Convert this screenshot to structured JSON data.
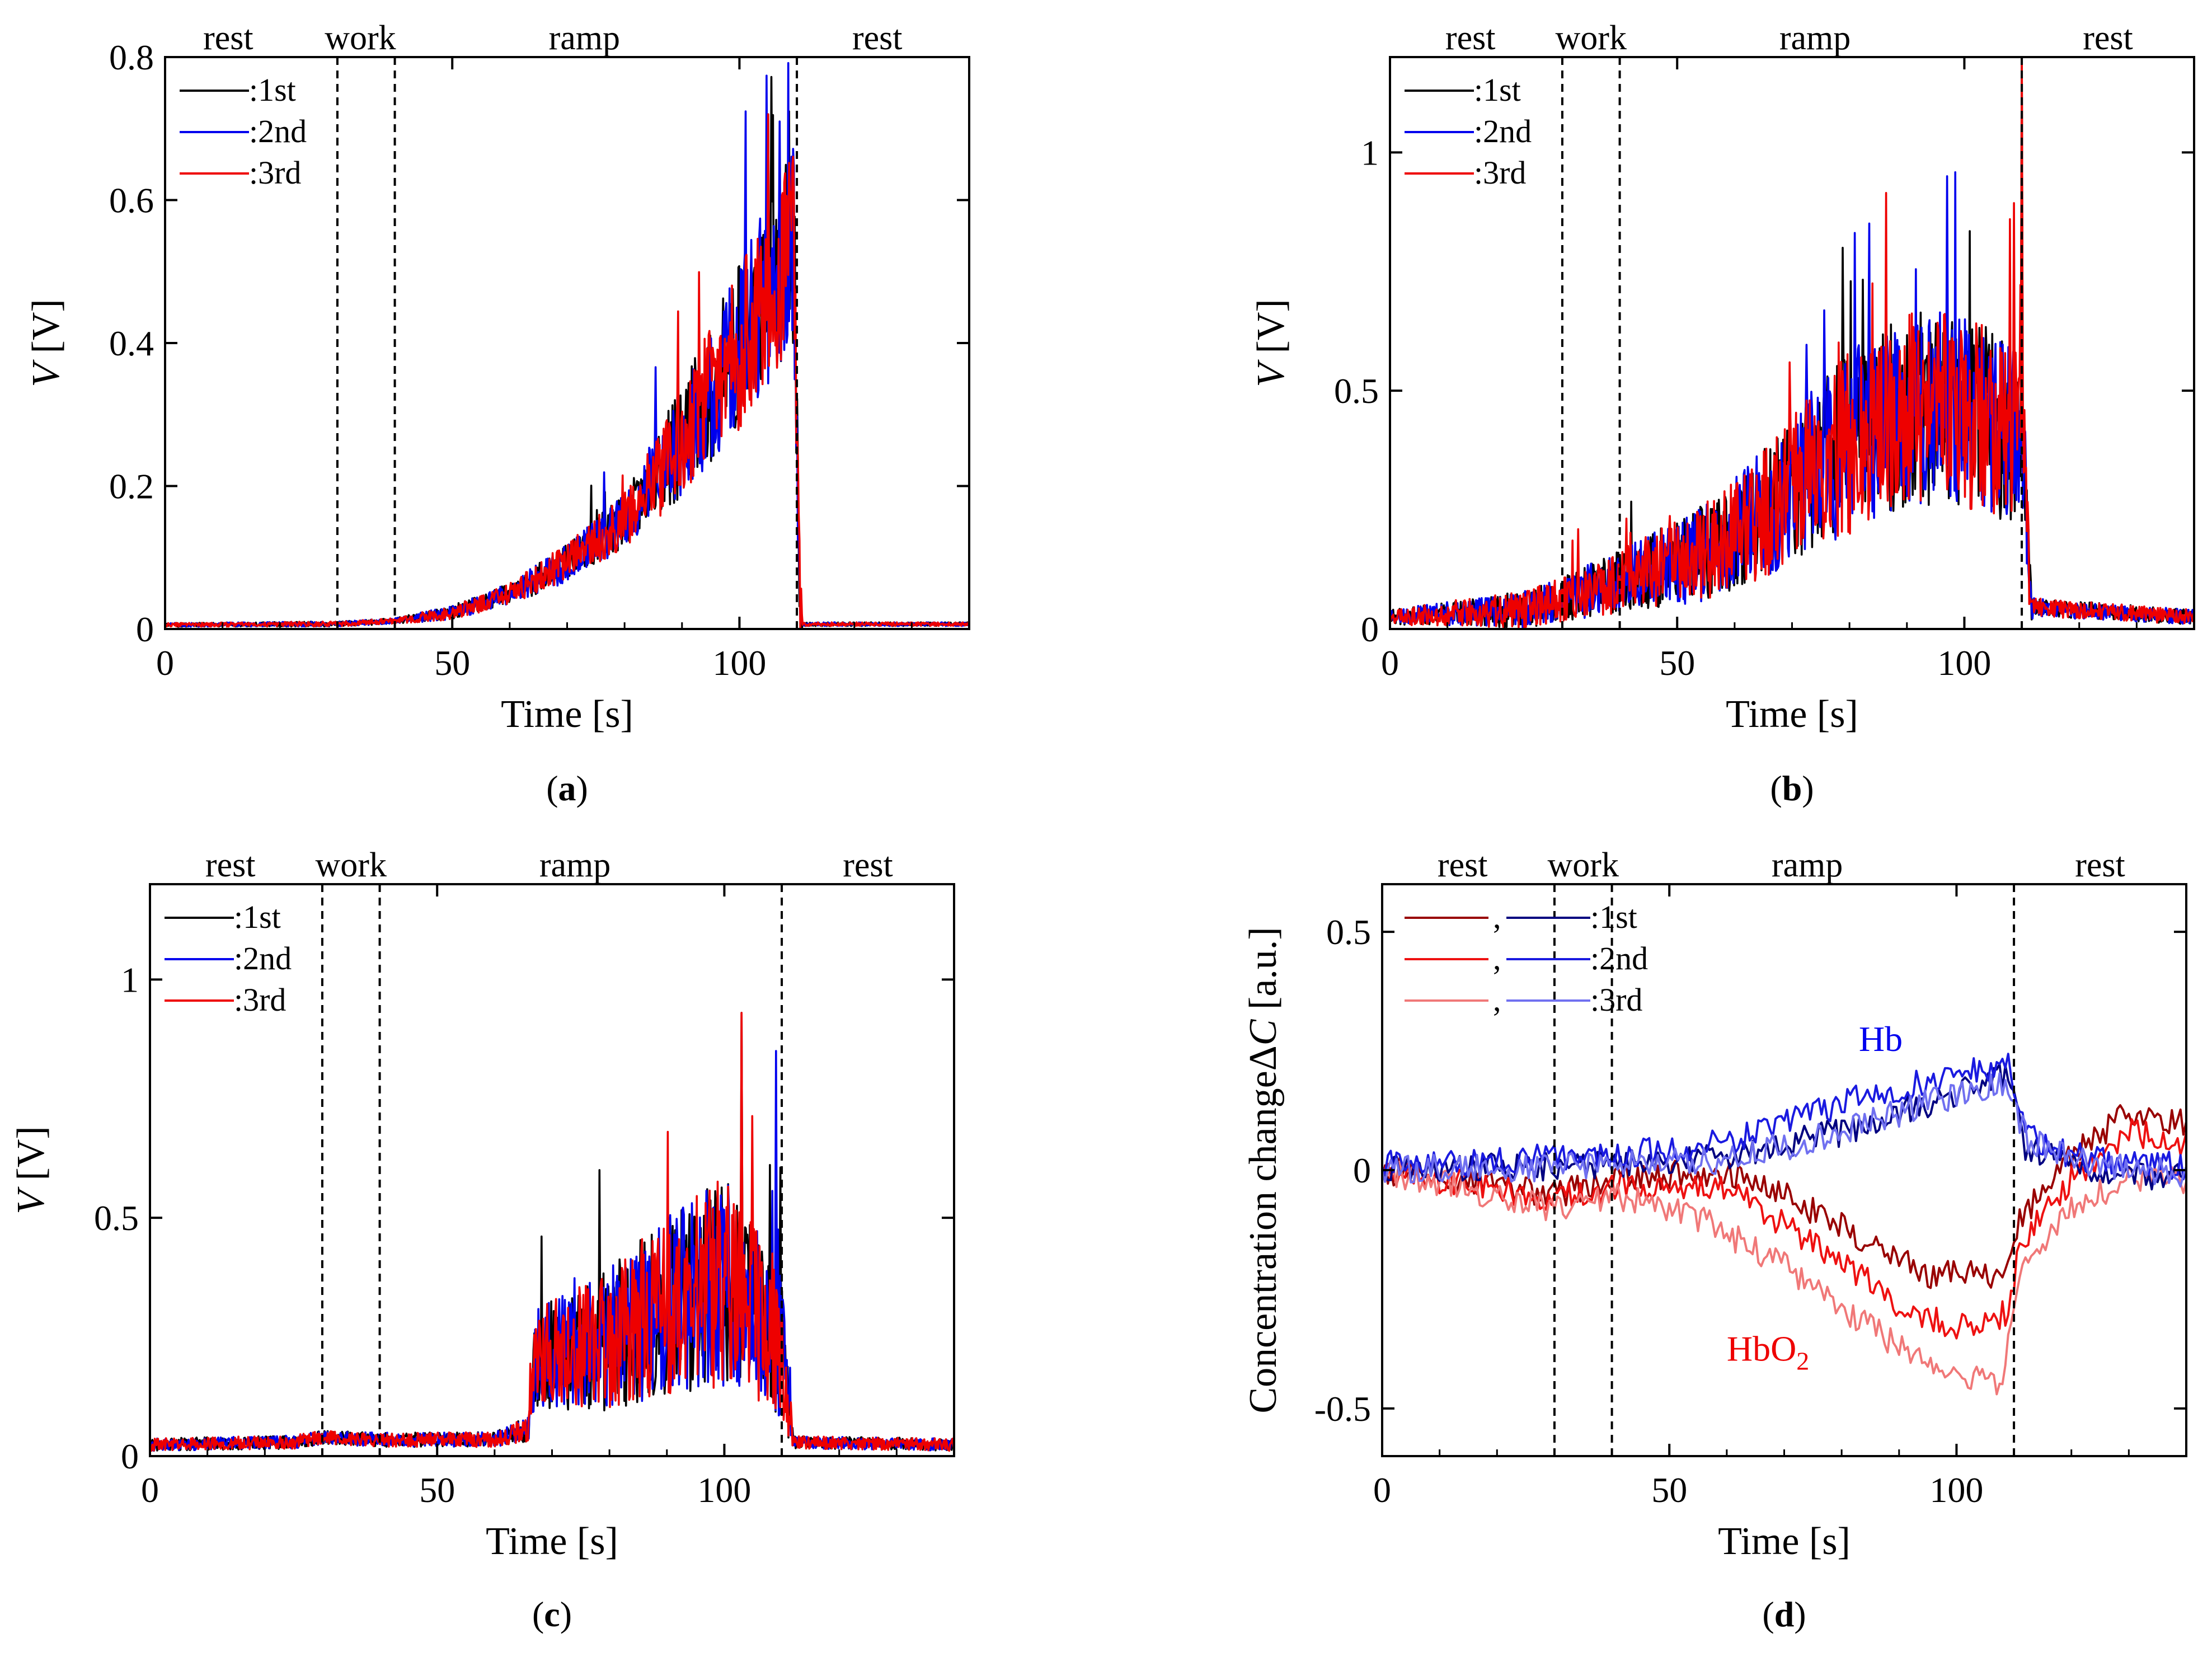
{
  "figure": "Four-panel time-series figure",
  "chart_data": [
    {
      "id": "a",
      "type": "line",
      "panel_label": "a",
      "xlabel": "Time [s]",
      "ylabel_italic": "V",
      "ylabel_rest": " [V]",
      "xlim": [
        0,
        140
      ],
      "ylim": [
        0,
        0.8
      ],
      "xticks": [
        0,
        50,
        100
      ],
      "yticks": [
        0,
        0.2,
        0.4,
        0.6,
        0.8
      ],
      "ytick_labels": [
        "0",
        "0.2",
        "0.4",
        "0.6",
        "0.8"
      ],
      "phase_boundaries": [
        30,
        40,
        110
      ],
      "phases": [
        {
          "label": "rest",
          "x": 11
        },
        {
          "label": "work",
          "x": 34
        },
        {
          "label": "ramp",
          "x": 73
        },
        {
          "label": "rest",
          "x": 124
        }
      ],
      "series": [
        {
          "name": ":1st",
          "color": "#000000"
        },
        {
          "name": ":2nd",
          "color": "#0000ee"
        },
        {
          "name": ":3rd",
          "color": "#ee0000"
        }
      ],
      "trace_profile": [
        [
          0,
          0.005
        ],
        [
          30,
          0.006
        ],
        [
          40,
          0.01
        ],
        [
          50,
          0.02
        ],
        [
          60,
          0.045
        ],
        [
          70,
          0.085
        ],
        [
          80,
          0.14
        ],
        [
          90,
          0.24
        ],
        [
          100,
          0.36
        ],
        [
          107,
          0.46
        ],
        [
          109.5,
          0.5
        ],
        [
          110.5,
          0.006
        ],
        [
          140,
          0.006
        ]
      ],
      "noise_profile": [
        [
          0,
          0.002
        ],
        [
          40,
          0.003
        ],
        [
          60,
          0.012
        ],
        [
          80,
          0.03
        ],
        [
          90,
          0.06
        ],
        [
          100,
          0.09
        ],
        [
          110,
          0.11
        ],
        [
          111,
          0.002
        ],
        [
          140,
          0.002
        ]
      ],
      "peaks": [
        [
          105,
          0.72
        ],
        [
          107,
          0.71
        ]
      ]
    },
    {
      "id": "b",
      "type": "line",
      "panel_label": "b",
      "xlabel": "Time [s]",
      "ylabel_italic": "V",
      "ylabel_rest": " [V]",
      "xlim": [
        0,
        140
      ],
      "ylim": [
        0,
        1.2
      ],
      "xticks": [
        0,
        50,
        100
      ],
      "yticks": [
        0,
        0.5,
        1
      ],
      "ytick_labels": [
        "0",
        "0.5",
        "1"
      ],
      "phase_boundaries": [
        30,
        40,
        110
      ],
      "phases": [
        {
          "label": "rest",
          "x": 14
        },
        {
          "label": "work",
          "x": 35
        },
        {
          "label": "ramp",
          "x": 74
        },
        {
          "label": "rest",
          "x": 125
        }
      ],
      "series": [
        {
          "name": ":1st",
          "color": "#000000"
        },
        {
          "name": ":2nd",
          "color": "#0000ee"
        },
        {
          "name": ":3rd",
          "color": "#ee0000"
        }
      ],
      "trace_profile": [
        [
          0,
          0.02
        ],
        [
          24,
          0.03
        ],
        [
          30,
          0.05
        ],
        [
          40,
          0.08
        ],
        [
          55,
          0.13
        ],
        [
          65,
          0.2
        ],
        [
          75,
          0.3
        ],
        [
          90,
          0.4
        ],
        [
          100,
          0.4
        ],
        [
          108,
          0.35
        ],
        [
          110,
          0.4
        ],
        [
          111.5,
          0.04
        ],
        [
          140,
          0.02
        ]
      ],
      "noise_profile": [
        [
          0,
          0.012
        ],
        [
          24,
          0.03
        ],
        [
          40,
          0.05
        ],
        [
          60,
          0.09
        ],
        [
          80,
          0.15
        ],
        [
          100,
          0.16
        ],
        [
          110,
          0.14
        ],
        [
          112,
          0.015
        ],
        [
          140,
          0.012
        ]
      ],
      "peaks": [
        [
          110,
          1.2
        ],
        [
          97,
          0.95
        ]
      ]
    },
    {
      "id": "c",
      "type": "line",
      "panel_label": "c",
      "xlabel": "Time [s]",
      "ylabel_italic": "V",
      "ylabel_rest": " [V]",
      "xlim": [
        0,
        140
      ],
      "ylim": [
        0,
        1.2
      ],
      "xticks": [
        0,
        50,
        100
      ],
      "yticks": [
        0,
        0.5,
        1
      ],
      "ytick_labels": [
        "0",
        "0.5",
        "1"
      ],
      "phase_boundaries": [
        30,
        40,
        110
      ],
      "phases": [
        {
          "label": "rest",
          "x": 14
        },
        {
          "label": "work",
          "x": 35
        },
        {
          "label": "ramp",
          "x": 74
        },
        {
          "label": "rest",
          "x": 125
        }
      ],
      "series": [
        {
          "name": ":1st",
          "color": "#000000"
        },
        {
          "name": ":2nd",
          "color": "#0000ee"
        },
        {
          "name": ":3rd",
          "color": "#ee0000"
        }
      ],
      "trace_profile": [
        [
          0,
          0.02
        ],
        [
          25,
          0.025
        ],
        [
          30,
          0.035
        ],
        [
          40,
          0.03
        ],
        [
          60,
          0.03
        ],
        [
          66,
          0.05
        ],
        [
          67,
          0.17
        ],
        [
          80,
          0.2
        ],
        [
          90,
          0.26
        ],
        [
          100,
          0.3
        ],
        [
          108,
          0.22
        ],
        [
          110,
          0.18
        ],
        [
          112,
          0.025
        ],
        [
          140,
          0.02
        ]
      ],
      "noise_profile": [
        [
          0,
          0.01
        ],
        [
          60,
          0.012
        ],
        [
          66,
          0.02
        ],
        [
          67,
          0.08
        ],
        [
          85,
          0.13
        ],
        [
          100,
          0.17
        ],
        [
          110,
          0.12
        ],
        [
          112,
          0.01
        ],
        [
          140,
          0.01
        ]
      ],
      "peaks": [
        [
          103,
          0.93
        ],
        [
          109,
          0.85
        ]
      ]
    },
    {
      "id": "d",
      "type": "line",
      "panel_label": "d",
      "xlabel": "Time [s]",
      "ylabel": "Concentration change",
      "ylabel_symbol": "ΔC",
      "ylabel_unit": " [a.u.]",
      "xlim": [
        0,
        140
      ],
      "ylim": [
        -0.6,
        0.6
      ],
      "xticks": [
        0,
        50,
        100
      ],
      "yticks": [
        -0.5,
        0,
        0.5
      ],
      "ytick_labels": [
        "-0.5",
        "0",
        "0.5"
      ],
      "phase_boundaries": [
        30,
        40,
        110
      ],
      "phases": [
        {
          "label": "rest",
          "x": 14
        },
        {
          "label": "work",
          "x": 35
        },
        {
          "label": "ramp",
          "x": 74
        },
        {
          "label": "rest",
          "x": 125
        }
      ],
      "legend_pairs": [
        {
          "hbo2_color": "#990000",
          "hb_color": "#000080",
          "name": ":1st"
        },
        {
          "hbo2_color": "#ee1111",
          "hb_color": "#1a1ae0",
          "name": ":2nd"
        },
        {
          "hbo2_color": "#f07878",
          "hb_color": "#7070f0",
          "name": ":3rd"
        }
      ],
      "legend_separator": ",",
      "annotations": [
        {
          "text": "Hb",
          "color": "#0000ee",
          "x": 83,
          "y": 0.25
        },
        {
          "text": "HbO",
          "subscript": "2",
          "color": "#ee0000",
          "x": 60,
          "y": -0.4
        }
      ],
      "hb_series": [
        {
          "name": "Hb 1st",
          "color": "#000080",
          "profile": [
            [
              0,
              0
            ],
            [
              40,
              0.01
            ],
            [
              60,
              0.03
            ],
            [
              80,
              0.08
            ],
            [
              100,
              0.16
            ],
            [
              109,
              0.2
            ],
            [
              112,
              0.05
            ],
            [
              120,
              0.01
            ],
            [
              140,
              -0.02
            ]
          ]
        },
        {
          "name": "Hb 2nd",
          "color": "#1a1ae0",
          "profile": [
            [
              0,
              0.01
            ],
            [
              40,
              0.03
            ],
            [
              60,
              0.06
            ],
            [
              80,
              0.14
            ],
            [
              100,
              0.2
            ],
            [
              109,
              0.23
            ],
            [
              112,
              0.08
            ],
            [
              120,
              0.03
            ],
            [
              140,
              0.01
            ]
          ]
        },
        {
          "name": "Hb 3rd",
          "color": "#7070f0",
          "profile": [
            [
              0,
              0
            ],
            [
              40,
              0.01
            ],
            [
              60,
              0.02
            ],
            [
              80,
              0.08
            ],
            [
              100,
              0.16
            ],
            [
              109,
              0.18
            ],
            [
              112,
              0.07
            ],
            [
              120,
              0.02
            ],
            [
              140,
              -0.01
            ]
          ]
        }
      ],
      "hbo2_series": [
        {
          "name": "HbO2 1st",
          "color": "#990000",
          "profile": [
            [
              0,
              0
            ],
            [
              30,
              -0.05
            ],
            [
              40,
              -0.02
            ],
            [
              60,
              0
            ],
            [
              70,
              -0.05
            ],
            [
              80,
              -0.12
            ],
            [
              95,
              -0.22
            ],
            [
              109,
              -0.22
            ],
            [
              111,
              -0.1
            ],
            [
              120,
              0.03
            ],
            [
              130,
              0.12
            ],
            [
              140,
              0.1
            ]
          ]
        },
        {
          "name": "HbO2 2nd",
          "color": "#ee1111",
          "profile": [
            [
              0,
              0
            ],
            [
              30,
              -0.06
            ],
            [
              40,
              -0.04
            ],
            [
              60,
              -0.04
            ],
            [
              75,
              -0.15
            ],
            [
              90,
              -0.28
            ],
            [
              100,
              -0.33
            ],
            [
              109,
              -0.3
            ],
            [
              111,
              -0.15
            ],
            [
              120,
              -0.02
            ],
            [
              130,
              0.08
            ],
            [
              140,
              0.05
            ]
          ]
        },
        {
          "name": "HbO2 3rd",
          "color": "#f07878",
          "profile": [
            [
              0,
              0
            ],
            [
              30,
              -0.08
            ],
            [
              40,
              -0.05
            ],
            [
              55,
              -0.1
            ],
            [
              70,
              -0.2
            ],
            [
              85,
              -0.33
            ],
            [
              97,
              -0.42
            ],
            [
              108,
              -0.45
            ],
            [
              111,
              -0.2
            ],
            [
              120,
              -0.08
            ],
            [
              130,
              -0.02
            ],
            [
              140,
              -0.02
            ]
          ]
        }
      ],
      "noise_level": 0.025
    }
  ]
}
